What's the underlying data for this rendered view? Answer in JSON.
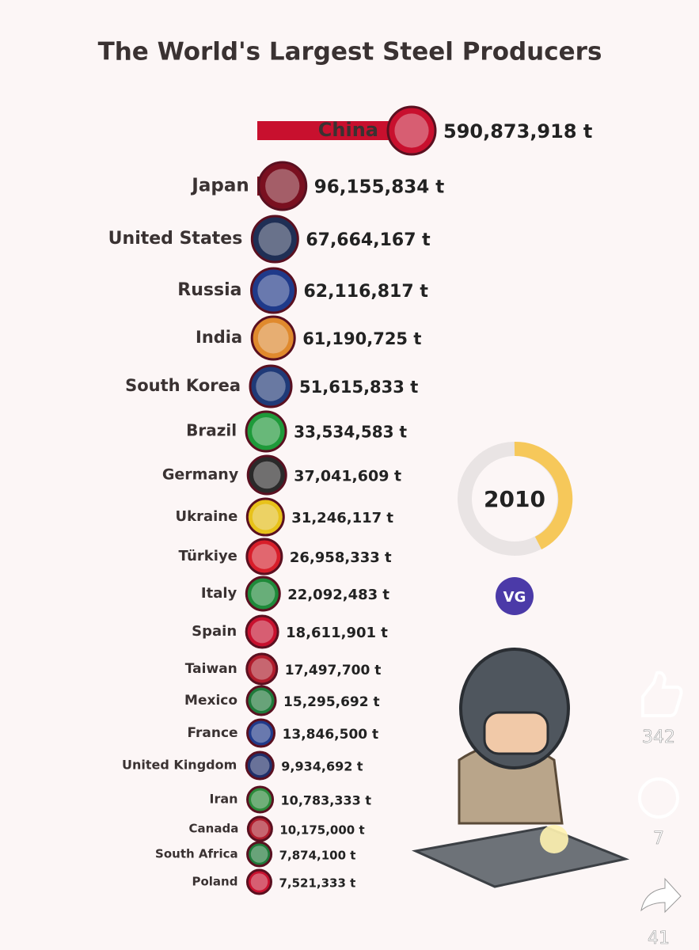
{
  "chart_data": {
    "type": "bar",
    "title": "The World's Largest Steel Producers",
    "categories": [
      "China",
      "Japan",
      "United States",
      "Russia",
      "India",
      "South Korea",
      "Brazil",
      "Germany",
      "Ukraine",
      "Türkiye",
      "Italy",
      "Spain",
      "Taiwan",
      "Mexico",
      "France",
      "United Kingdom",
      "Iran",
      "Canada",
      "South Africa",
      "Poland"
    ],
    "values": [
      590873918,
      96155834,
      67664167,
      62116817,
      61190725,
      51615833,
      33534583,
      37041609,
      31246117,
      26958333,
      22092483,
      18611901,
      17497700,
      15295692,
      13846500,
      9934692,
      10783333,
      10175000,
      7874100,
      7521333
    ],
    "value_labels": [
      "590,873,918 t",
      "96,155,834 t",
      "67,664,167 t",
      "62,116,817 t",
      "61,190,725 t",
      "51,615,833 t",
      "33,534,583 t",
      "37,041,609 t",
      "31,246,117 t",
      "26,958,333 t",
      "22,092,483 t",
      "18,611,901 t",
      "17,497,700 t",
      "15,295,692 t",
      "13,846,500 t",
      "9,934,692 t",
      "10,783,333 t",
      "10,175,000 t",
      "7,874,100 t",
      "7,521,333 t"
    ],
    "colors": [
      "#c8102e",
      "#7a1020",
      "#1f2f55",
      "#1f3a8a",
      "#e08a2e",
      "#1f3a78",
      "#1e9a3a",
      "#2a2a2a",
      "#e8c21a",
      "#d81e2a",
      "#1e8a3a",
      "#c8102e",
      "#b01c2c",
      "#1e7a3a",
      "#1f3a8a",
      "#1f2f6a",
      "#2a8a3a",
      "#b01c2c",
      "#1e7a3a",
      "#c8102e"
    ],
    "year": "2010"
  },
  "logo": "VG",
  "social": {
    "likes": 342,
    "comments": 7,
    "shares": 41
  }
}
